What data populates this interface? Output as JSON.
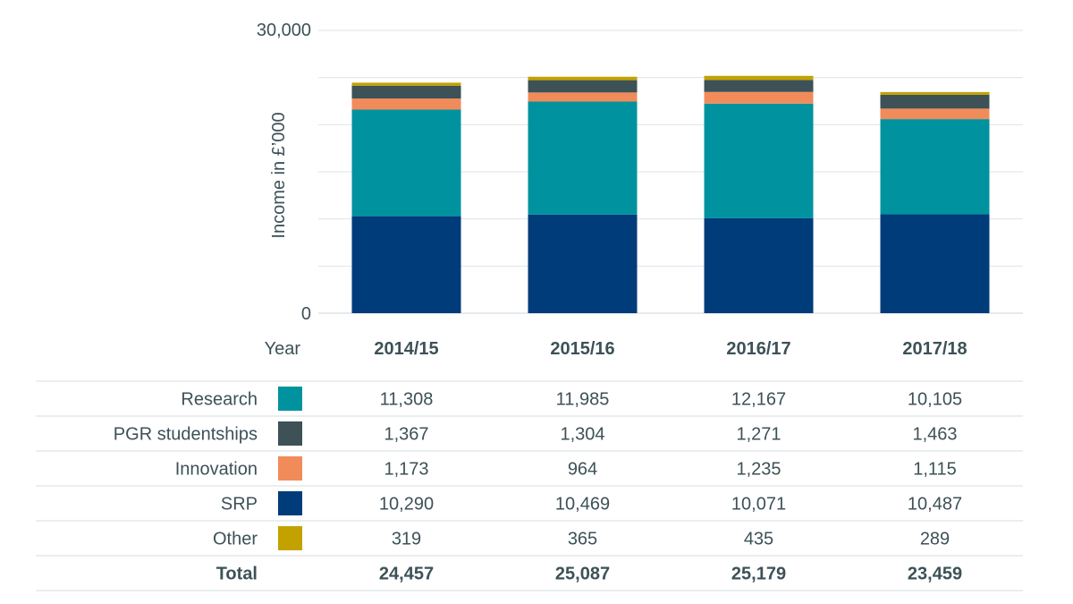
{
  "chart_data": {
    "type": "bar",
    "stacked": true,
    "categories": [
      "2014/15",
      "2015/16",
      "2016/17",
      "2017/18"
    ],
    "series": [
      {
        "name": "SRP",
        "color": "#003b7a",
        "values": [
          10290,
          10469,
          10071,
          10487
        ]
      },
      {
        "name": "Research",
        "color": "#00939f",
        "values": [
          11308,
          11985,
          12167,
          10105
        ]
      },
      {
        "name": "Innovation",
        "color": "#f28b5a",
        "values": [
          1173,
          964,
          1235,
          1115
        ]
      },
      {
        "name": "PGR studentships",
        "color": "#3d5157",
        "values": [
          1367,
          1304,
          1271,
          1463
        ]
      },
      {
        "name": "Other",
        "color": "#c3a200",
        "values": [
          319,
          365,
          435,
          289
        ]
      }
    ],
    "ylabel": "Income in £’000",
    "ylim": [
      0,
      30000
    ],
    "yticks": [
      "0",
      "30,000"
    ],
    "grid": true,
    "table": {
      "header_label": "Year",
      "row_order": [
        "Research",
        "PGR studentships",
        "Innovation",
        "SRP",
        "Other"
      ],
      "rows": [
        {
          "label": "Research",
          "color": "#00939f",
          "values": [
            "11,308",
            "11,985",
            "12,167",
            "10,105"
          ]
        },
        {
          "label": "PGR studentships",
          "color": "#3d5157",
          "values": [
            "1,367",
            "1,304",
            "1,271",
            "1,463"
          ]
        },
        {
          "label": "Innovation",
          "color": "#f28b5a",
          "values": [
            "1,173",
            "964",
            "1,235",
            "1,115"
          ]
        },
        {
          "label": "SRP",
          "color": "#003b7a",
          "values": [
            "10,290",
            "10,469",
            "10,071",
            "10,487"
          ]
        },
        {
          "label": "Other",
          "color": "#c3a200",
          "values": [
            "319",
            "365",
            "435",
            "289"
          ]
        }
      ],
      "total": {
        "label": "Total",
        "values": [
          "24,457",
          "25,087",
          "25,179",
          "23,459"
        ]
      }
    }
  },
  "colors": {
    "text": "#3d5157",
    "grid": "#dfe3e5"
  }
}
